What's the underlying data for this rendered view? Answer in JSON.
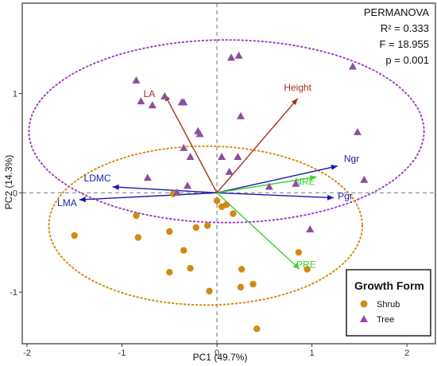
{
  "chart_data": {
    "type": "scatter",
    "title": "",
    "xlabel": "PC1 (49.7%)",
    "ylabel": "PC2 (14.3%)",
    "xlim": [
      -2.05,
      2.3
    ],
    "ylim": [
      -1.52,
      1.91
    ],
    "xticks": [
      {
        "value": -2,
        "label": "-2"
      },
      {
        "value": -1,
        "label": "-1"
      },
      {
        "value": 0,
        "label": "0"
      },
      {
        "value": 1,
        "label": "1"
      },
      {
        "value": 2,
        "label": "2"
      }
    ],
    "yticks": [
      {
        "value": -1,
        "label": "-1"
      },
      {
        "value": 0,
        "label": "0"
      },
      {
        "value": 1,
        "label": "1"
      }
    ],
    "grid": false,
    "reference_lines": {
      "x": 0,
      "y": 0,
      "style": "dashed",
      "color": "#888888"
    },
    "stats": {
      "title": "PERMANOVA",
      "lines": [
        "R² = 0.333",
        "F = 18.955",
        "p = 0.001"
      ]
    },
    "legend": {
      "title": "Growth Form",
      "position": "bottom-right",
      "items": [
        {
          "label": "Shrub",
          "color": "#d08a14",
          "marker": "circle"
        },
        {
          "label": "Tree",
          "color": "#8a4f9e",
          "marker": "triangle"
        }
      ]
    },
    "series": [
      {
        "name": "Shrub",
        "marker": "circle",
        "color": "#d08a14",
        "points": [
          {
            "x": -1.5,
            "y": -0.43
          },
          {
            "x": -0.85,
            "y": -0.23
          },
          {
            "x": -0.83,
            "y": -0.45
          },
          {
            "x": -0.5,
            "y": -0.39
          },
          {
            "x": -0.35,
            "y": -0.58
          },
          {
            "x": -0.28,
            "y": -0.76
          },
          {
            "x": -0.5,
            "y": -0.8
          },
          {
            "x": -0.22,
            "y": -0.35
          },
          {
            "x": -0.1,
            "y": -0.33
          },
          {
            "x": -0.08,
            "y": -0.99
          },
          {
            "x": 0.0,
            "y": -0.08
          },
          {
            "x": 0.05,
            "y": -0.14
          },
          {
            "x": 0.1,
            "y": -0.12
          },
          {
            "x": 0.17,
            "y": -0.21
          },
          {
            "x": 0.26,
            "y": -0.77
          },
          {
            "x": 0.25,
            "y": -0.95
          },
          {
            "x": 0.38,
            "y": -0.92
          },
          {
            "x": 0.42,
            "y": -1.37
          },
          {
            "x": -0.46,
            "y": -0.01
          },
          {
            "x": 0.86,
            "y": -0.6
          },
          {
            "x": 0.95,
            "y": -0.77
          }
        ]
      },
      {
        "name": "Tree",
        "marker": "triangle",
        "color": "#8a4f9e",
        "points": [
          {
            "x": -0.85,
            "y": 1.13
          },
          {
            "x": -0.8,
            "y": 0.92
          },
          {
            "x": -0.68,
            "y": 0.88
          },
          {
            "x": -0.55,
            "y": 0.97
          },
          {
            "x": -0.37,
            "y": 0.91
          },
          {
            "x": -0.35,
            "y": 0.91
          },
          {
            "x": 0.15,
            "y": 1.36
          },
          {
            "x": 0.23,
            "y": 1.38
          },
          {
            "x": 0.25,
            "y": 0.77
          },
          {
            "x": -0.2,
            "y": 0.62
          },
          {
            "x": -0.18,
            "y": 0.59
          },
          {
            "x": -0.35,
            "y": 0.45
          },
          {
            "x": -0.28,
            "y": 0.36
          },
          {
            "x": 0.05,
            "y": 0.36
          },
          {
            "x": 0.22,
            "y": 0.36
          },
          {
            "x": 0.13,
            "y": 0.21
          },
          {
            "x": -0.73,
            "y": 0.15
          },
          {
            "x": -0.31,
            "y": 0.07
          },
          {
            "x": -0.42,
            "y": 0.0
          },
          {
            "x": 0.55,
            "y": 0.06
          },
          {
            "x": 0.83,
            "y": 0.09
          },
          {
            "x": 1.48,
            "y": 0.61
          },
          {
            "x": 1.43,
            "y": 1.27
          },
          {
            "x": 1.55,
            "y": 0.13
          },
          {
            "x": 0.98,
            "y": -0.37
          }
        ]
      }
    ],
    "vectors": [
      {
        "label": "LA",
        "x": -0.55,
        "y": 0.99,
        "color": "#a8301e"
      },
      {
        "label": "Height",
        "x": 0.85,
        "y": 0.95,
        "color": "#a8301e"
      },
      {
        "label": "LDMC",
        "x": -1.1,
        "y": 0.06,
        "color": "#1a1aae"
      },
      {
        "label": "LMA",
        "x": -1.45,
        "y": -0.07,
        "color": "#1a1aae"
      },
      {
        "label": "Ngr",
        "x": 1.27,
        "y": 0.27,
        "color": "#1a1aae"
      },
      {
        "label": "Pgr",
        "x": 1.23,
        "y": -0.05,
        "color": "#1a1aae"
      },
      {
        "label": "NRE",
        "x": 1.05,
        "y": 0.16,
        "color": "#3ad12f"
      },
      {
        "label": "PRE",
        "x": 0.87,
        "y": -0.77,
        "color": "#3ad12f"
      }
    ],
    "ellipses": [
      {
        "group": "Tree",
        "color": "#9b44c8",
        "center": [
          0.1,
          0.62
        ],
        "radii": [
          2.08,
          0.92
        ],
        "style": "dotted"
      },
      {
        "group": "Shrub",
        "color": "#d98a10",
        "center": [
          -0.12,
          -0.33
        ],
        "radii": [
          1.65,
          0.8
        ],
        "style": "dotted"
      }
    ]
  }
}
